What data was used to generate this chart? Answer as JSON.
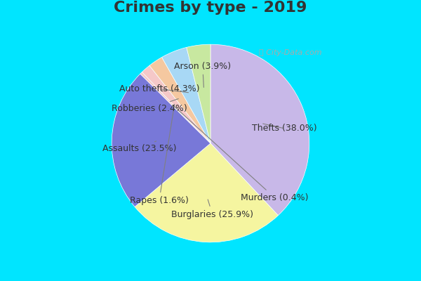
{
  "title": "Crimes by type - 2019",
  "labels": [
    "Thefts",
    "Burglaries",
    "Assaults",
    "Murders",
    "Rapes",
    "Robberies",
    "Auto thefts",
    "Arson"
  ],
  "values": [
    38.0,
    25.9,
    23.5,
    0.4,
    1.6,
    2.4,
    4.3,
    3.9
  ],
  "colors": [
    "#c8b8e8",
    "#f5f5a0",
    "#7878d8",
    "#f5c8c8",
    "#f5c8c8",
    "#f5c8a0",
    "#a8d8f5",
    "#c8e8a0"
  ],
  "background_top": "#00e5ff",
  "background_chart": "#d8f0e0",
  "title_fontsize": 16,
  "label_fontsize": 9,
  "startangle": 90
}
